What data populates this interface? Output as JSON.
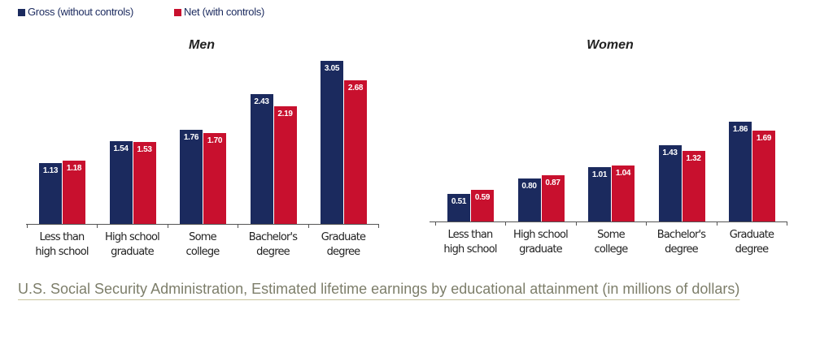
{
  "legend_position": "top-left",
  "chart_data": [
    {
      "type": "bar",
      "title": "Men",
      "categories": [
        "Less than\nhigh school",
        "High school\ngraduate",
        "Some\ncollege",
        "Bachelor's\ndegree",
        "Graduate\ndegree"
      ],
      "series": [
        {
          "name": "Gross (without controls)",
          "color": "#1b2a5e",
          "values": [
            1.13,
            1.54,
            1.76,
            2.43,
            3.05
          ],
          "value_labels": [
            "1.13",
            "1.54",
            "1.76",
            "2.43",
            "3.05"
          ]
        },
        {
          "name": "Net (with controls)",
          "color": "#c8102e",
          "values": [
            1.18,
            1.53,
            1.7,
            2.19,
            2.68
          ],
          "value_labels": [
            "1.18",
            "1.53",
            "1.70",
            "2.19",
            "2.68"
          ]
        }
      ]
    },
    {
      "type": "bar",
      "title": "Women",
      "categories": [
        "Less than\nhigh school",
        "High school\ngraduate",
        "Some\ncollege",
        "Bachelor's\ndegree",
        "Graduate\ndegree"
      ],
      "series": [
        {
          "color": "#1b2a5e",
          "values": [
            0.51,
            0.8,
            1.01,
            1.43,
            1.86
          ],
          "value_labels": [
            "0.51",
            "0.80",
            "1.01",
            "1.43",
            "1.86"
          ]
        },
        {
          "color": "#c8102e",
          "values": [
            0.59,
            0.87,
            1.04,
            1.32,
            1.69
          ],
          "value_labels": [
            "0.59",
            "0.87",
            "1.04",
            "1.32",
            "1.69"
          ]
        }
      ]
    }
  ],
  "caption": "U.S. Social Security Administration, Estimated lifetime earnings by educational attainment (in millions of dollars)"
}
